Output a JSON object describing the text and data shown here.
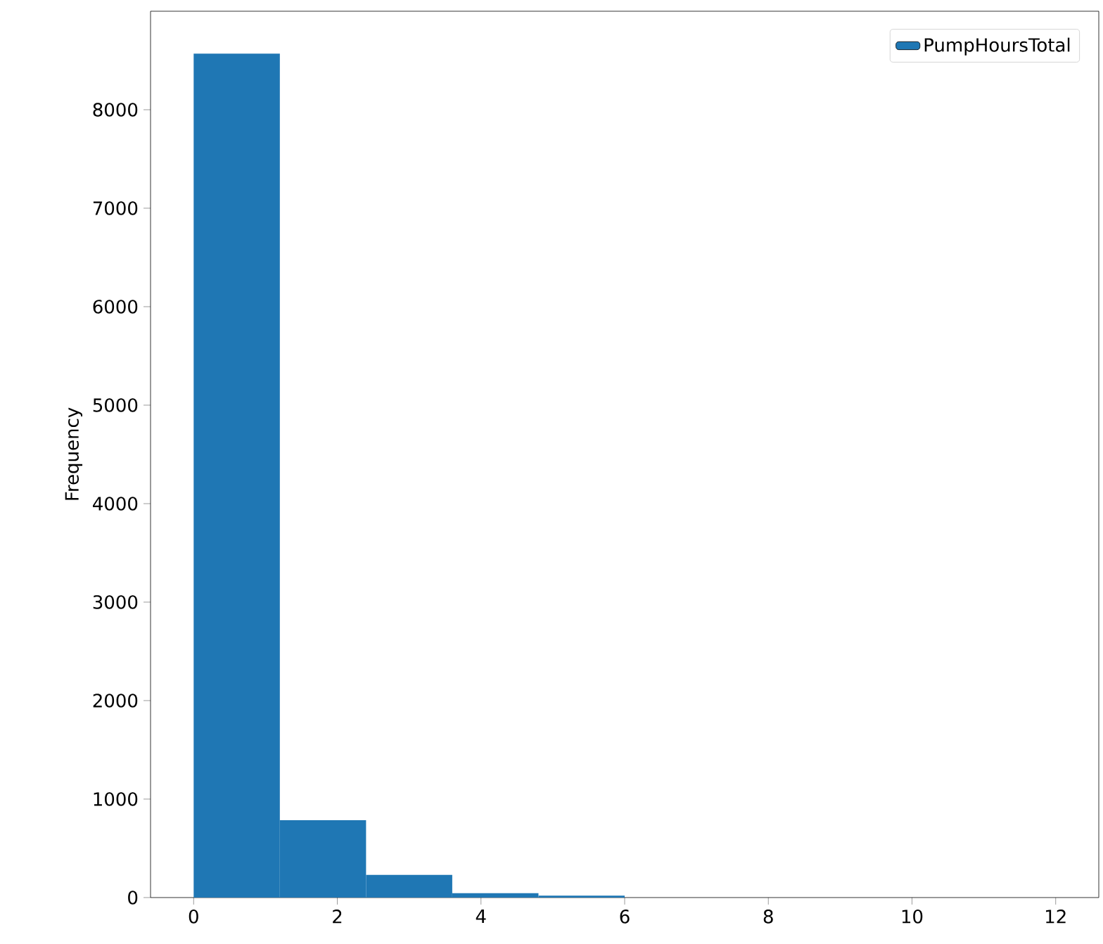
{
  "chart_data": {
    "type": "histogram",
    "ylabel": "Frequency",
    "bins": [
      0,
      1.2,
      2.4,
      3.6,
      4.8,
      6.0,
      7.2,
      8.4,
      9.6,
      10.8,
      12.0
    ],
    "series": [
      {
        "name": "PumpHoursTotal",
        "color": "#1f77b4",
        "values": [
          8570,
          785,
          230,
          45,
          20,
          0,
          0,
          0,
          0,
          0
        ]
      }
    ],
    "xlim": [
      -0.6,
      12.6
    ],
    "ylim": [
      0,
      9000
    ],
    "xticks": [
      0,
      2,
      4,
      6,
      8,
      10,
      12
    ],
    "yticks": [
      0,
      1000,
      2000,
      3000,
      4000,
      5000,
      6000,
      7000,
      8000
    ],
    "legend": "top right",
    "grid": false
  }
}
